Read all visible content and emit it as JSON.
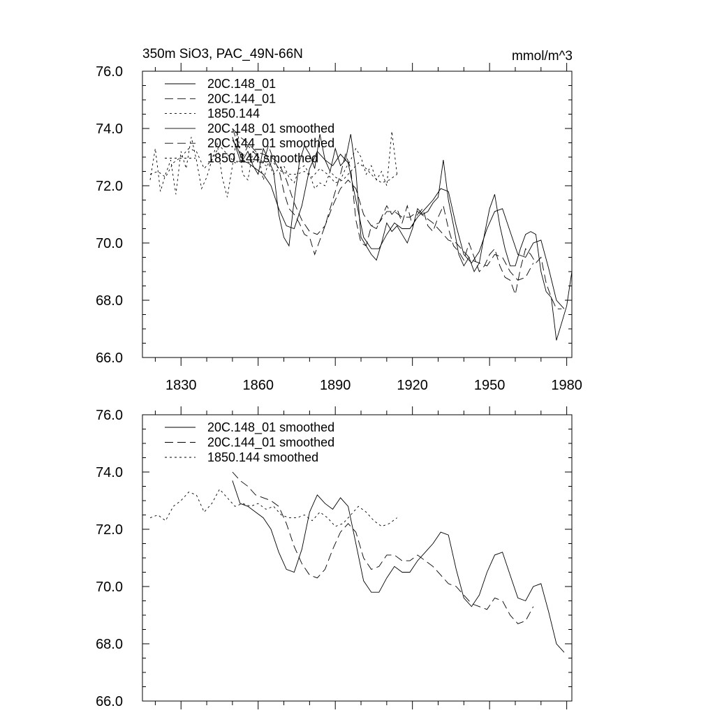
{
  "chart_data": [
    {
      "type": "line",
      "title": "350m SiO3, PAC_49N-66N",
      "units": "mmol/m^3",
      "xlim": [
        1815,
        1982
      ],
      "ylim": [
        66,
        76
      ],
      "x_ticks": [
        1830,
        1860,
        1890,
        1920,
        1950,
        1980
      ],
      "x_tick_labels": [
        "1830",
        "1860",
        "1890",
        "1920",
        "1950",
        "1980"
      ],
      "y_ticks": [
        66,
        68,
        70,
        72,
        74,
        76
      ],
      "y_tick_labels": [
        "66.0",
        "68.0",
        "70.0",
        "72.0",
        "74.0",
        "76.0"
      ],
      "legend_position": "top-left",
      "series": [
        {
          "name": "20C.148_01",
          "style": "solid",
          "x": [
            1850,
            1852,
            1854,
            1856,
            1858,
            1860,
            1862,
            1864,
            1866,
            1868,
            1870,
            1872,
            1874,
            1876,
            1878,
            1880,
            1882,
            1884,
            1886,
            1888,
            1890,
            1892,
            1894,
            1896,
            1898,
            1900,
            1902,
            1904,
            1906,
            1908,
            1910,
            1912,
            1914,
            1916,
            1918,
            1920,
            1922,
            1924,
            1926,
            1928,
            1930,
            1932,
            1934,
            1936,
            1938,
            1940,
            1942,
            1944,
            1946,
            1948,
            1950,
            1952,
            1954,
            1956,
            1958,
            1960,
            1962,
            1964,
            1966,
            1968,
            1970,
            1972,
            1974,
            1976,
            1978,
            1980,
            1982
          ],
          "y": [
            73.6,
            73.3,
            72.9,
            73.2,
            72.7,
            72.4,
            73.3,
            72.9,
            72.5,
            71.0,
            70.2,
            69.9,
            71.5,
            72.8,
            73.4,
            73.1,
            72.6,
            73.8,
            72.9,
            72.5,
            73.3,
            72.7,
            72.9,
            73.8,
            72.5,
            70.2,
            69.9,
            69.6,
            69.4,
            70.0,
            70.7,
            70.4,
            70.6,
            70.3,
            70.0,
            70.5,
            71.2,
            71.0,
            71.1,
            71.4,
            71.6,
            72.9,
            71.5,
            70.6,
            69.6,
            69.2,
            69.5,
            69.0,
            69.3,
            70.3,
            71.2,
            71.7,
            70.6,
            69.8,
            69.2,
            69.2,
            69.8,
            70.3,
            70.4,
            70.3,
            69.0,
            68.3,
            68.1,
            66.6,
            67.2,
            67.8,
            69.0
          ]
        },
        {
          "name": "20C.144_01",
          "style": "dashed",
          "x": [
            1850,
            1852,
            1854,
            1856,
            1858,
            1860,
            1862,
            1864,
            1866,
            1868,
            1870,
            1872,
            1874,
            1876,
            1878,
            1880,
            1882,
            1884,
            1886,
            1888,
            1890,
            1892,
            1894,
            1896,
            1898,
            1900,
            1902,
            1904,
            1906,
            1908,
            1910,
            1912,
            1914,
            1916,
            1918,
            1920,
            1922,
            1924,
            1926,
            1928,
            1930,
            1932,
            1934,
            1936,
            1938,
            1940,
            1942,
            1944,
            1946,
            1948,
            1950,
            1952,
            1954,
            1956,
            1958,
            1960,
            1962,
            1964,
            1966,
            1968,
            1970,
            1972,
            1974,
            1976,
            1978
          ],
          "y": [
            74.0,
            73.5,
            73.0,
            73.4,
            73.2,
            73.0,
            72.8,
            73.4,
            72.9,
            72.6,
            71.8,
            71.2,
            71.0,
            70.7,
            70.3,
            70.2,
            69.6,
            70.1,
            70.6,
            71.2,
            71.8,
            72.4,
            73.1,
            72.6,
            70.8,
            70.0,
            69.9,
            70.6,
            70.5,
            70.9,
            71.3,
            71.0,
            71.2,
            70.7,
            71.3,
            70.6,
            71.0,
            71.2,
            70.6,
            70.4,
            70.9,
            71.3,
            70.5,
            69.9,
            69.7,
            69.4,
            70.0,
            69.5,
            69.0,
            69.2,
            69.6,
            69.8,
            69.2,
            68.8,
            68.7,
            68.2,
            69.1,
            69.8,
            69.6,
            69.3,
            69.5,
            68.6,
            68.1,
            67.7,
            67.7
          ]
        },
        {
          "name": "1850.144",
          "style": "dotted",
          "x": [
            1818,
            1820,
            1822,
            1824,
            1826,
            1828,
            1830,
            1832,
            1834,
            1836,
            1838,
            1840,
            1842,
            1844,
            1846,
            1848,
            1850,
            1852,
            1854,
            1856,
            1858,
            1860,
            1862,
            1864,
            1866,
            1868,
            1870,
            1872,
            1874,
            1876,
            1878,
            1880,
            1882,
            1884,
            1886,
            1888,
            1890,
            1892,
            1894,
            1896,
            1898,
            1900,
            1902,
            1904,
            1906,
            1908,
            1910,
            1912,
            1914
          ],
          "y": [
            72.2,
            73.3,
            71.8,
            72.4,
            72.9,
            71.7,
            73.2,
            72.6,
            73.7,
            72.9,
            71.9,
            72.3,
            72.9,
            73.5,
            72.3,
            71.6,
            72.7,
            73.9,
            72.4,
            72.2,
            73.2,
            73.1,
            72.2,
            72.8,
            72.4,
            72.6,
            72.7,
            72.3,
            72.1,
            72.6,
            72.7,
            72.4,
            71.9,
            72.1,
            72.0,
            72.5,
            72.3,
            72.2,
            72.6,
            72.9,
            73.3,
            73.0,
            72.4,
            72.7,
            72.2,
            72.5,
            72.0,
            73.9,
            72.4
          ]
        },
        {
          "name": "20C.148_01 smoothed",
          "style": "solid",
          "x": [
            1850,
            1853,
            1856,
            1859,
            1862,
            1865,
            1868,
            1871,
            1874,
            1877,
            1880,
            1883,
            1886,
            1889,
            1892,
            1895,
            1898,
            1901,
            1904,
            1907,
            1910,
            1913,
            1916,
            1919,
            1922,
            1925,
            1928,
            1931,
            1934,
            1937,
            1940,
            1943,
            1946,
            1949,
            1952,
            1955,
            1958,
            1961,
            1964,
            1967,
            1970,
            1973,
            1976,
            1979
          ],
          "y": [
            73.7,
            72.9,
            72.8,
            72.6,
            72.4,
            72.0,
            71.2,
            70.6,
            70.5,
            71.3,
            72.6,
            73.2,
            72.9,
            72.7,
            73.1,
            72.8,
            71.5,
            70.2,
            69.8,
            69.8,
            70.3,
            70.7,
            70.5,
            70.5,
            70.9,
            71.2,
            71.5,
            71.9,
            71.8,
            70.6,
            69.6,
            69.3,
            69.7,
            70.5,
            71.1,
            71.2,
            70.4,
            69.6,
            69.5,
            70.0,
            70.1,
            69.1,
            68.0,
            67.7
          ]
        },
        {
          "name": "20C.144_01 smoothed",
          "style": "dashed",
          "x": [
            1850,
            1853,
            1856,
            1859,
            1862,
            1865,
            1868,
            1871,
            1874,
            1877,
            1880,
            1883,
            1886,
            1889,
            1892,
            1895,
            1898,
            1901,
            1904,
            1907,
            1910,
            1913,
            1916,
            1919,
            1922,
            1925,
            1928,
            1931,
            1934,
            1937,
            1940,
            1943,
            1946,
            1949,
            1952,
            1955,
            1958,
            1961,
            1964,
            1967
          ],
          "y": [
            74.0,
            73.7,
            73.5,
            73.2,
            73.1,
            73.0,
            72.8,
            72.2,
            71.4,
            70.8,
            70.4,
            70.3,
            70.6,
            71.3,
            71.9,
            72.2,
            71.9,
            71.0,
            70.6,
            70.7,
            71.1,
            71.1,
            70.9,
            70.9,
            71.1,
            70.9,
            70.7,
            70.4,
            70.1,
            70.0,
            69.7,
            69.4,
            69.3,
            69.2,
            69.6,
            69.5,
            69.0,
            68.7,
            68.8,
            69.3
          ]
        },
        {
          "name": "1850.144 smoothed",
          "style": "dotted",
          "x": [
            1818,
            1821,
            1824,
            1827,
            1830,
            1833,
            1836,
            1839,
            1842,
            1845,
            1848,
            1851,
            1854,
            1857,
            1860,
            1863,
            1866,
            1869,
            1872,
            1875,
            1878,
            1881,
            1884,
            1887,
            1890,
            1893,
            1896,
            1899,
            1902,
            1905,
            1908,
            1911,
            1914
          ],
          "y": [
            72.4,
            72.5,
            72.3,
            72.8,
            73.0,
            73.3,
            73.2,
            72.6,
            72.9,
            73.4,
            73.1,
            72.8,
            72.9,
            72.8,
            72.9,
            72.7,
            72.8,
            72.5,
            72.4,
            72.4,
            72.5,
            72.3,
            72.6,
            72.4,
            72.1,
            72.2,
            72.5,
            72.8,
            72.6,
            72.3,
            72.1,
            72.2,
            72.4
          ]
        }
      ]
    },
    {
      "type": "line",
      "xlim": [
        1815,
        1982
      ],
      "ylim": [
        66,
        76
      ],
      "y_ticks": [
        66,
        68,
        70,
        72,
        74,
        76
      ],
      "y_tick_labels": [
        "66.0",
        "68.0",
        "70.0",
        "72.0",
        "74.0",
        "76.0"
      ],
      "legend_position": "top-left",
      "series_refs": [
        "20C.148_01 smoothed",
        "20C.144_01 smoothed",
        "1850.144 smoothed"
      ]
    }
  ]
}
